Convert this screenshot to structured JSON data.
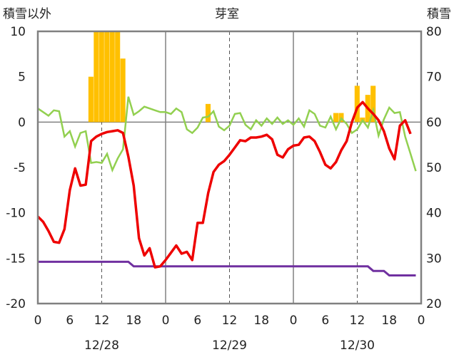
{
  "chart_data": {
    "type": "line",
    "title": "芽室",
    "left_axis_label": "積雪以外",
    "right_axis_label": "積雪",
    "left_ylim": [
      -20,
      10
    ],
    "left_ticks": [
      "10",
      "5",
      "0",
      "-5",
      "-10",
      "-15",
      "-20"
    ],
    "right_ylim": [
      20,
      80
    ],
    "right_ticks": [
      "80",
      "70",
      "60",
      "50",
      "40",
      "30",
      "20"
    ],
    "x_range_hours": [
      0,
      72
    ],
    "x_tick_labels": [
      "0",
      "6",
      "12",
      "18",
      "0",
      "6",
      "12",
      "18",
      "0",
      "6",
      "12",
      "18",
      "0"
    ],
    "date_labels": [
      "12/28",
      "12/29",
      "12/30"
    ],
    "grid": "dashed vertical lines at 12h, solid vertical lines at day boundaries",
    "colors": {
      "temperature": "#ee0000",
      "snow_change": "#ffc000",
      "green_series": "#92d050",
      "snow_depth": "#7030a0",
      "frame": "#808080"
    },
    "bars": [
      {
        "x": 10,
        "v": 5
      },
      {
        "x": 11,
        "v": 10
      },
      {
        "x": 12,
        "v": 10
      },
      {
        "x": 13,
        "v": 10
      },
      {
        "x": 14,
        "v": 10
      },
      {
        "x": 15,
        "v": 10
      },
      {
        "x": 16,
        "v": 7
      },
      {
        "x": 32,
        "v": 2
      },
      {
        "x": 56,
        "v": 1
      },
      {
        "x": 57,
        "v": 1
      },
      {
        "x": 60,
        "v": 4
      },
      {
        "x": 61,
        "v": 0.5
      },
      {
        "x": 62,
        "v": 3
      },
      {
        "x": 63,
        "v": 4
      }
    ],
    "temperature": [
      [
        0,
        -10.4
      ],
      [
        1,
        -11
      ],
      [
        2,
        -12
      ],
      [
        3,
        -13.2
      ],
      [
        4,
        -13.3
      ],
      [
        5,
        -11.8
      ],
      [
        6,
        -7.5
      ],
      [
        7,
        -5.1
      ],
      [
        8,
        -7
      ],
      [
        9,
        -6.9
      ],
      [
        10,
        -2.1
      ],
      [
        11,
        -1.6
      ],
      [
        12,
        -1.3
      ],
      [
        13,
        -1.1
      ],
      [
        14,
        -1.0
      ],
      [
        15,
        -0.9
      ],
      [
        16,
        -1.2
      ],
      [
        17,
        -3.8
      ],
      [
        18,
        -7
      ],
      [
        19,
        -12.8
      ],
      [
        20,
        -14.7
      ],
      [
        21,
        -13.9
      ],
      [
        22,
        -16
      ],
      [
        23,
        -15.9
      ],
      [
        24,
        -15.2
      ],
      [
        25,
        -14.4
      ],
      [
        26,
        -13.6
      ],
      [
        27,
        -14.5
      ],
      [
        28,
        -14.3
      ],
      [
        29,
        -15.2
      ],
      [
        30,
        -11.1
      ],
      [
        31,
        -11.1
      ],
      [
        32,
        -7.8
      ],
      [
        33,
        -5.5
      ],
      [
        34,
        -4.7
      ],
      [
        35,
        -4.3
      ],
      [
        36,
        -3.6
      ],
      [
        37,
        -2.8
      ],
      [
        38,
        -2
      ],
      [
        39,
        -2.1
      ],
      [
        40,
        -1.7
      ],
      [
        41,
        -1.7
      ],
      [
        42,
        -1.6
      ],
      [
        43,
        -1.4
      ],
      [
        44,
        -1.9
      ],
      [
        45,
        -3.6
      ],
      [
        46,
        -3.9
      ],
      [
        47,
        -3
      ],
      [
        48,
        -2.6
      ],
      [
        49,
        -2.5
      ],
      [
        50,
        -1.7
      ],
      [
        51,
        -1.6
      ],
      [
        52,
        -2.1
      ],
      [
        53,
        -3.3
      ],
      [
        54,
        -4.7
      ],
      [
        55,
        -5.1
      ],
      [
        56,
        -4.4
      ],
      [
        57,
        -3.1
      ],
      [
        58,
        -2.1
      ],
      [
        59,
        0
      ],
      [
        60,
        1.6
      ],
      [
        61,
        2.2
      ],
      [
        62,
        1.5
      ],
      [
        63,
        0.9
      ],
      [
        64,
        0.2
      ],
      [
        65,
        -1
      ],
      [
        66,
        -2.9
      ],
      [
        67,
        -4.1
      ],
      [
        68,
        -0.4
      ],
      [
        69,
        0.2
      ],
      [
        70,
        -1.3
      ]
    ],
    "green_series": [
      [
        0,
        1.5
      ],
      [
        1,
        1.1
      ],
      [
        2,
        0.7
      ],
      [
        3,
        1.3
      ],
      [
        4,
        1.2
      ],
      [
        5,
        -1.6
      ],
      [
        6,
        -1
      ],
      [
        7,
        -2.7
      ],
      [
        8,
        -1.2
      ],
      [
        9,
        -1
      ],
      [
        10,
        -4.5
      ],
      [
        11,
        -4.4
      ],
      [
        12,
        -4.5
      ],
      [
        13,
        -3.5
      ],
      [
        14,
        -5.3
      ],
      [
        15,
        -4
      ],
      [
        16,
        -3
      ],
      [
        17,
        2.8
      ],
      [
        18,
        0.8
      ],
      [
        19,
        1.2
      ],
      [
        20,
        1.7
      ],
      [
        21,
        1.5
      ],
      [
        22,
        1.3
      ],
      [
        23,
        1.1
      ],
      [
        24,
        1.1
      ],
      [
        25,
        0.9
      ],
      [
        26,
        1.5
      ],
      [
        27,
        1.1
      ],
      [
        28,
        -0.8
      ],
      [
        29,
        -1.2
      ],
      [
        30,
        -0.6
      ],
      [
        31,
        0.5
      ],
      [
        32,
        0.6
      ],
      [
        33,
        1.2
      ],
      [
        34,
        -0.5
      ],
      [
        35,
        -0.9
      ],
      [
        36,
        -0.4
      ],
      [
        37,
        0.9
      ],
      [
        38,
        1.0
      ],
      [
        39,
        -0.3
      ],
      [
        40,
        -0.8
      ],
      [
        41,
        0.2
      ],
      [
        42,
        -0.4
      ],
      [
        43,
        0.4
      ],
      [
        44,
        -0.2
      ],
      [
        45,
        0.5
      ],
      [
        46,
        -0.2
      ],
      [
        47,
        0.2
      ],
      [
        48,
        -0.3
      ],
      [
        49,
        0.4
      ],
      [
        50,
        -0.5
      ],
      [
        51,
        1.3
      ],
      [
        52,
        0.9
      ],
      [
        53,
        -0.4
      ],
      [
        54,
        -0.6
      ],
      [
        55,
        0.6
      ],
      [
        56,
        -0.8
      ],
      [
        57,
        0.4
      ],
      [
        58,
        -0.2
      ],
      [
        59,
        -1.2
      ],
      [
        60,
        -0.8
      ],
      [
        61,
        0.2
      ],
      [
        62,
        -0.6
      ],
      [
        63,
        1.3
      ],
      [
        64,
        -1.5
      ],
      [
        65,
        0.3
      ],
      [
        66,
        1.6
      ],
      [
        67,
        1.0
      ],
      [
        68,
        1.1
      ],
      [
        69,
        -1.6
      ],
      [
        70,
        -3.5
      ],
      [
        71,
        -5.4
      ]
    ],
    "snow_depth": [
      [
        0,
        -15.4
      ],
      [
        17,
        -15.4
      ],
      [
        18,
        -15.9
      ],
      [
        53,
        -15.9
      ],
      [
        54,
        -15.9
      ],
      [
        62,
        -15.9
      ],
      [
        63,
        -16.4
      ],
      [
        65,
        -16.4
      ],
      [
        66,
        -16.9
      ],
      [
        71,
        -16.9
      ]
    ]
  }
}
